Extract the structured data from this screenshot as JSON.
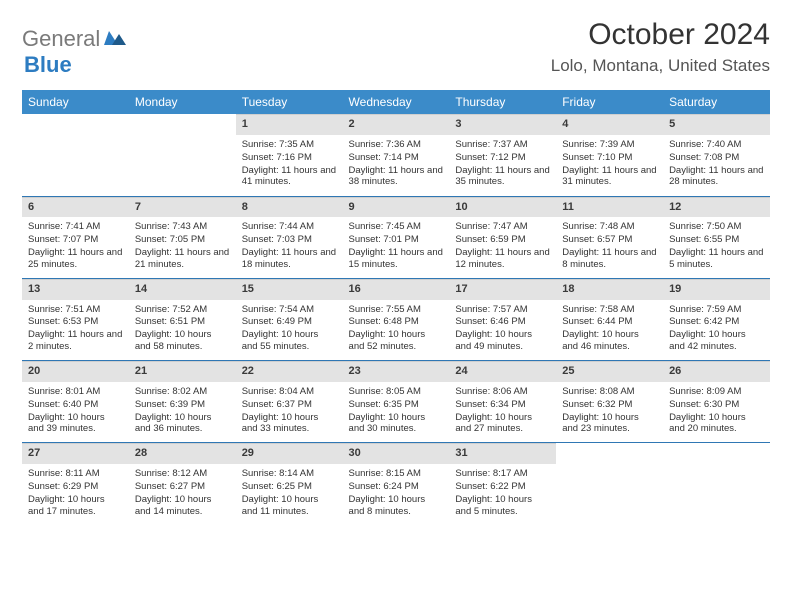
{
  "brand": {
    "general": "General",
    "blue": "Blue"
  },
  "header": {
    "month": "October 2024",
    "location": "Lolo, Montana, United States"
  },
  "colors": {
    "header_bg": "#3b8bc9",
    "header_text": "#ffffff",
    "daynum_bg": "#e3e3e3",
    "row_divider": "#2f77b4",
    "logo_gray": "#7a7a7a",
    "logo_blue": "#2d7cc1",
    "text": "#333333",
    "background": "#ffffff"
  },
  "weekdays": [
    "Sunday",
    "Monday",
    "Tuesday",
    "Wednesday",
    "Thursday",
    "Friday",
    "Saturday"
  ],
  "weeks": [
    [
      {
        "n": "",
        "sr": "",
        "ss": "",
        "dl": ""
      },
      {
        "n": "",
        "sr": "",
        "ss": "",
        "dl": ""
      },
      {
        "n": "1",
        "sr": "Sunrise: 7:35 AM",
        "ss": "Sunset: 7:16 PM",
        "dl": "Daylight: 11 hours and 41 minutes."
      },
      {
        "n": "2",
        "sr": "Sunrise: 7:36 AM",
        "ss": "Sunset: 7:14 PM",
        "dl": "Daylight: 11 hours and 38 minutes."
      },
      {
        "n": "3",
        "sr": "Sunrise: 7:37 AM",
        "ss": "Sunset: 7:12 PM",
        "dl": "Daylight: 11 hours and 35 minutes."
      },
      {
        "n": "4",
        "sr": "Sunrise: 7:39 AM",
        "ss": "Sunset: 7:10 PM",
        "dl": "Daylight: 11 hours and 31 minutes."
      },
      {
        "n": "5",
        "sr": "Sunrise: 7:40 AM",
        "ss": "Sunset: 7:08 PM",
        "dl": "Daylight: 11 hours and 28 minutes."
      }
    ],
    [
      {
        "n": "6",
        "sr": "Sunrise: 7:41 AM",
        "ss": "Sunset: 7:07 PM",
        "dl": "Daylight: 11 hours and 25 minutes."
      },
      {
        "n": "7",
        "sr": "Sunrise: 7:43 AM",
        "ss": "Sunset: 7:05 PM",
        "dl": "Daylight: 11 hours and 21 minutes."
      },
      {
        "n": "8",
        "sr": "Sunrise: 7:44 AM",
        "ss": "Sunset: 7:03 PM",
        "dl": "Daylight: 11 hours and 18 minutes."
      },
      {
        "n": "9",
        "sr": "Sunrise: 7:45 AM",
        "ss": "Sunset: 7:01 PM",
        "dl": "Daylight: 11 hours and 15 minutes."
      },
      {
        "n": "10",
        "sr": "Sunrise: 7:47 AM",
        "ss": "Sunset: 6:59 PM",
        "dl": "Daylight: 11 hours and 12 minutes."
      },
      {
        "n": "11",
        "sr": "Sunrise: 7:48 AM",
        "ss": "Sunset: 6:57 PM",
        "dl": "Daylight: 11 hours and 8 minutes."
      },
      {
        "n": "12",
        "sr": "Sunrise: 7:50 AM",
        "ss": "Sunset: 6:55 PM",
        "dl": "Daylight: 11 hours and 5 minutes."
      }
    ],
    [
      {
        "n": "13",
        "sr": "Sunrise: 7:51 AM",
        "ss": "Sunset: 6:53 PM",
        "dl": "Daylight: 11 hours and 2 minutes."
      },
      {
        "n": "14",
        "sr": "Sunrise: 7:52 AM",
        "ss": "Sunset: 6:51 PM",
        "dl": "Daylight: 10 hours and 58 minutes."
      },
      {
        "n": "15",
        "sr": "Sunrise: 7:54 AM",
        "ss": "Sunset: 6:49 PM",
        "dl": "Daylight: 10 hours and 55 minutes."
      },
      {
        "n": "16",
        "sr": "Sunrise: 7:55 AM",
        "ss": "Sunset: 6:48 PM",
        "dl": "Daylight: 10 hours and 52 minutes."
      },
      {
        "n": "17",
        "sr": "Sunrise: 7:57 AM",
        "ss": "Sunset: 6:46 PM",
        "dl": "Daylight: 10 hours and 49 minutes."
      },
      {
        "n": "18",
        "sr": "Sunrise: 7:58 AM",
        "ss": "Sunset: 6:44 PM",
        "dl": "Daylight: 10 hours and 46 minutes."
      },
      {
        "n": "19",
        "sr": "Sunrise: 7:59 AM",
        "ss": "Sunset: 6:42 PM",
        "dl": "Daylight: 10 hours and 42 minutes."
      }
    ],
    [
      {
        "n": "20",
        "sr": "Sunrise: 8:01 AM",
        "ss": "Sunset: 6:40 PM",
        "dl": "Daylight: 10 hours and 39 minutes."
      },
      {
        "n": "21",
        "sr": "Sunrise: 8:02 AM",
        "ss": "Sunset: 6:39 PM",
        "dl": "Daylight: 10 hours and 36 minutes."
      },
      {
        "n": "22",
        "sr": "Sunrise: 8:04 AM",
        "ss": "Sunset: 6:37 PM",
        "dl": "Daylight: 10 hours and 33 minutes."
      },
      {
        "n": "23",
        "sr": "Sunrise: 8:05 AM",
        "ss": "Sunset: 6:35 PM",
        "dl": "Daylight: 10 hours and 30 minutes."
      },
      {
        "n": "24",
        "sr": "Sunrise: 8:06 AM",
        "ss": "Sunset: 6:34 PM",
        "dl": "Daylight: 10 hours and 27 minutes."
      },
      {
        "n": "25",
        "sr": "Sunrise: 8:08 AM",
        "ss": "Sunset: 6:32 PM",
        "dl": "Daylight: 10 hours and 23 minutes."
      },
      {
        "n": "26",
        "sr": "Sunrise: 8:09 AM",
        "ss": "Sunset: 6:30 PM",
        "dl": "Daylight: 10 hours and 20 minutes."
      }
    ],
    [
      {
        "n": "27",
        "sr": "Sunrise: 8:11 AM",
        "ss": "Sunset: 6:29 PM",
        "dl": "Daylight: 10 hours and 17 minutes."
      },
      {
        "n": "28",
        "sr": "Sunrise: 8:12 AM",
        "ss": "Sunset: 6:27 PM",
        "dl": "Daylight: 10 hours and 14 minutes."
      },
      {
        "n": "29",
        "sr": "Sunrise: 8:14 AM",
        "ss": "Sunset: 6:25 PM",
        "dl": "Daylight: 10 hours and 11 minutes."
      },
      {
        "n": "30",
        "sr": "Sunrise: 8:15 AM",
        "ss": "Sunset: 6:24 PM",
        "dl": "Daylight: 10 hours and 8 minutes."
      },
      {
        "n": "31",
        "sr": "Sunrise: 8:17 AM",
        "ss": "Sunset: 6:22 PM",
        "dl": "Daylight: 10 hours and 5 minutes."
      },
      {
        "n": "",
        "sr": "",
        "ss": "",
        "dl": ""
      },
      {
        "n": "",
        "sr": "",
        "ss": "",
        "dl": ""
      }
    ]
  ]
}
